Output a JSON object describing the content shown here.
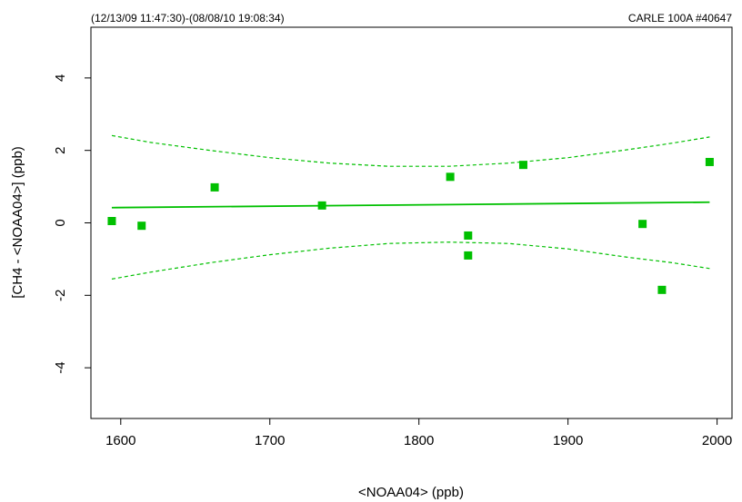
{
  "chart_data": {
    "type": "scatter",
    "title_left": "(12/13/09 11:47:30)-(08/08/10 19:08:34)",
    "title_right": "CARLE 100A #40647",
    "xlabel": "<NOAA04> (ppb)",
    "ylabel": "[CH4 - <NOAA04>] (ppb)",
    "xlim": [
      1580,
      2010
    ],
    "ylim": [
      -5.4,
      5.4
    ],
    "x_ticks": [
      1600,
      1700,
      1800,
      1900,
      2000
    ],
    "x_tick_labels": [
      "1600",
      "1700",
      "1800",
      "1900",
      "2000"
    ],
    "y_ticks": [
      -4,
      -2,
      0,
      2,
      4
    ],
    "y_tick_labels": [
      "-4",
      "-2",
      "0",
      "2",
      "4"
    ],
    "grid": false,
    "color": "#00c000",
    "points": [
      {
        "x": 1594,
        "y": 0.05
      },
      {
        "x": 1614,
        "y": -0.08
      },
      {
        "x": 1663,
        "y": 0.98
      },
      {
        "x": 1735,
        "y": 0.48
      },
      {
        "x": 1821,
        "y": 1.27
      },
      {
        "x": 1833,
        "y": -0.35
      },
      {
        "x": 1833,
        "y": -0.9
      },
      {
        "x": 1870,
        "y": 1.6
      },
      {
        "x": 1950,
        "y": -0.03
      },
      {
        "x": 1963,
        "y": -1.85
      },
      {
        "x": 1995,
        "y": 1.68
      }
    ],
    "fit_line": {
      "x": [
        1594,
        1995
      ],
      "y": [
        0.42,
        0.57
      ]
    },
    "confidence_upper": {
      "x": [
        1594,
        1620,
        1660,
        1700,
        1740,
        1780,
        1820,
        1860,
        1900,
        1940,
        1970,
        1995
      ],
      "y": [
        2.41,
        2.22,
        2.0,
        1.8,
        1.65,
        1.56,
        1.56,
        1.65,
        1.8,
        2.02,
        2.2,
        2.37
      ]
    },
    "confidence_lower": {
      "x": [
        1594,
        1620,
        1660,
        1700,
        1740,
        1780,
        1820,
        1860,
        1900,
        1940,
        1970,
        1995
      ],
      "y": [
        -1.55,
        -1.36,
        -1.1,
        -0.88,
        -0.7,
        -0.57,
        -0.53,
        -0.57,
        -0.72,
        -0.95,
        -1.1,
        -1.26
      ]
    }
  }
}
